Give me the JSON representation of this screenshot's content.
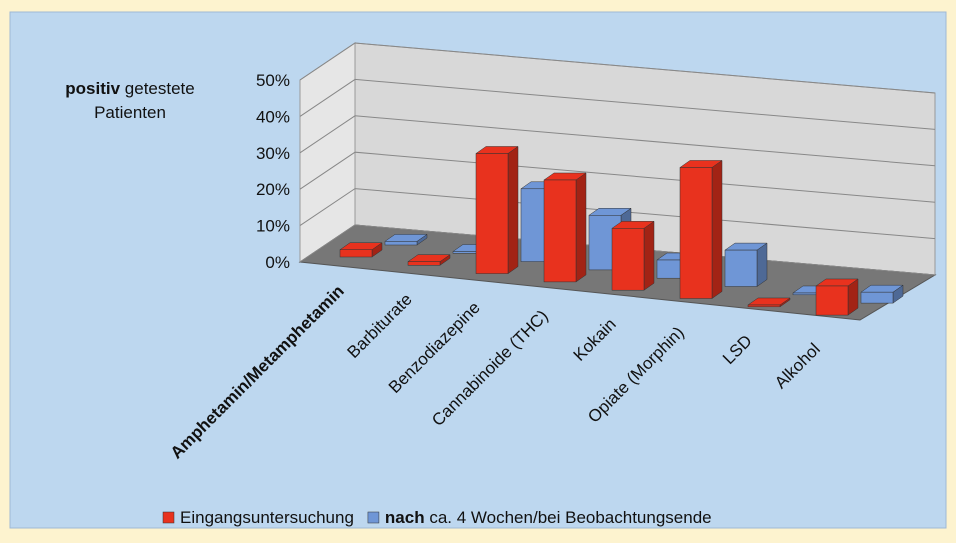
{
  "chart_data": {
    "type": "bar3d",
    "y_label": [
      "positiv getestete",
      "Patienten"
    ],
    "categories": [
      "Amphetamin/Metamphetamin",
      "Barbiturate",
      "Benzodiazepine",
      "Cannabinoide (THC)",
      "Kokain",
      "Opiate (Morphin)",
      "LSD",
      "Alkohol"
    ],
    "series": [
      {
        "name": "Eingangsuntersuchung",
        "color": "#e8321e",
        "values": [
          2,
          1,
          33,
          28,
          17,
          36,
          0.5,
          8
        ]
      },
      {
        "name": "nach ca. 4 Wochen/bei Beobachtungsende",
        "color": "#6f96d6",
        "values": [
          1,
          0.5,
          20,
          15,
          5,
          10,
          0.5,
          3
        ]
      }
    ],
    "ylim": [
      0,
      50
    ],
    "yticks": [
      {
        "value": 0,
        "label": "0%"
      },
      {
        "value": 10,
        "label": "10%"
      },
      {
        "value": 20,
        "label": "20%"
      },
      {
        "value": 30,
        "label": "30%"
      },
      {
        "value": 40,
        "label": "40%"
      },
      {
        "value": 50,
        "label": "50%"
      }
    ],
    "grid": true
  }
}
